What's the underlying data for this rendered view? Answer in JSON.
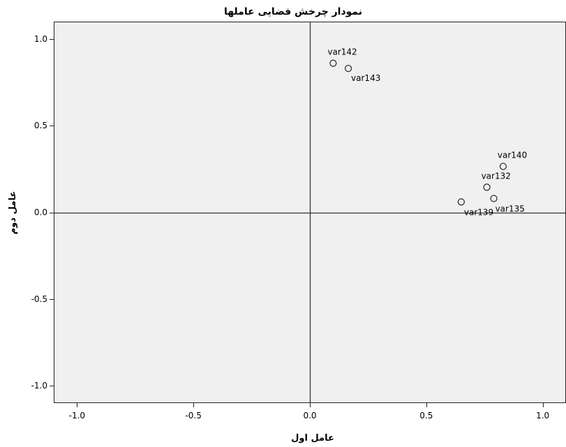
{
  "chart_data": {
    "type": "scatter",
    "title": "نمودار چرخش فضایی عاملها",
    "xlabel": "عامل اول",
    "ylabel": "عامل دوم",
    "xlim": [
      -1.1,
      1.1
    ],
    "ylim": [
      -1.1,
      1.1
    ],
    "x_ticks": [
      "-1.0",
      "-0.5",
      "0.0",
      "0.5",
      "1.0"
    ],
    "y_ticks": [
      "1.0",
      "0.5",
      "0.0",
      "-0.5",
      "-1.0"
    ],
    "grid": false,
    "reference_lines": {
      "x": 0,
      "y": 0
    },
    "plot_background": "#f0f0f0",
    "point_style": "open-circle",
    "points": [
      {
        "label": "var142",
        "x": 0.1,
        "y": 0.86
      },
      {
        "label": "var143",
        "x": 0.165,
        "y": 0.83
      },
      {
        "label": "var140",
        "x": 0.83,
        "y": 0.265
      },
      {
        "label": "var132",
        "x": 0.76,
        "y": 0.145
      },
      {
        "label": "var135",
        "x": 0.79,
        "y": 0.08
      },
      {
        "label": "var139",
        "x": 0.65,
        "y": 0.06
      }
    ]
  }
}
